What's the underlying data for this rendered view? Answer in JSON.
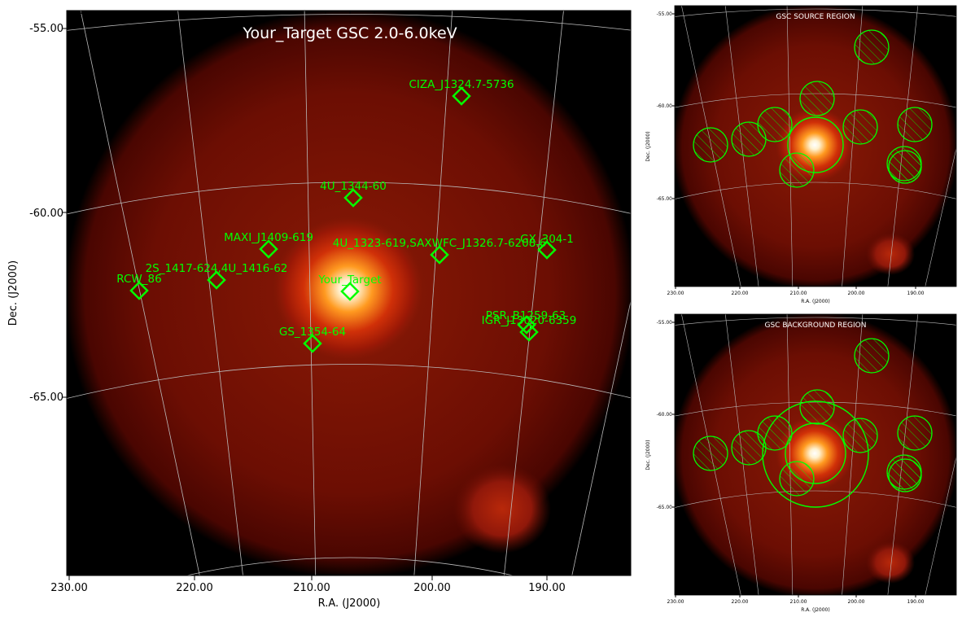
{
  "main_panel": {
    "title": "Your_Target GSC 2.0-6.0keV",
    "xlabel": "R.A. (J2000)",
    "ylabel": "Dec. (J2000)",
    "xticks": [
      "230.00",
      "220.00",
      "210.00",
      "200.00",
      "190.00"
    ],
    "yticks": [
      "-55.00",
      "-60.00",
      "-65.00"
    ],
    "sources": [
      {
        "label": "CIZA_J1324.7-5736"
      },
      {
        "label": "4U_1344-60"
      },
      {
        "label": "MAXI_J1409-619"
      },
      {
        "label": "4U_1323-619,SAXWFC_J1326.7-6208.6"
      },
      {
        "label": "GX_304-1"
      },
      {
        "label": "2S_1417-624,4U_1416-62"
      },
      {
        "label": "RCW_86"
      },
      {
        "label": "Your_Target"
      },
      {
        "label": "PSR_B1259-63"
      },
      {
        "label": "IGR_J13020-6359"
      },
      {
        "label": "GS_1354-64"
      }
    ]
  },
  "source_panel": {
    "title": "GSC SOURCE REGION",
    "xlabel": "R.A. (J2000)",
    "ylabel": "Dec. (J2000)",
    "xticks": [
      "230.00",
      "220.00",
      "210.00",
      "200.00",
      "190.00"
    ],
    "yticks": [
      "-55.00",
      "-60.00",
      "-65.00"
    ]
  },
  "background_panel": {
    "title": "GSC BACKGROUND REGION",
    "xlabel": "R.A. (J2000)",
    "ylabel": "Dec. (J2000)",
    "xticks": [
      "230.00",
      "220.00",
      "210.00",
      "200.00",
      "190.00"
    ],
    "yticks": [
      "-55.00",
      "-60.00",
      "-65.00"
    ]
  },
  "colors": {
    "marker": "#00ff00",
    "grid": "#bbbbbb",
    "sky": "#000000",
    "glow_core": "#ffffff",
    "glow_mid": "#ff9a20",
    "glow_outer": "#6a0a02"
  }
}
